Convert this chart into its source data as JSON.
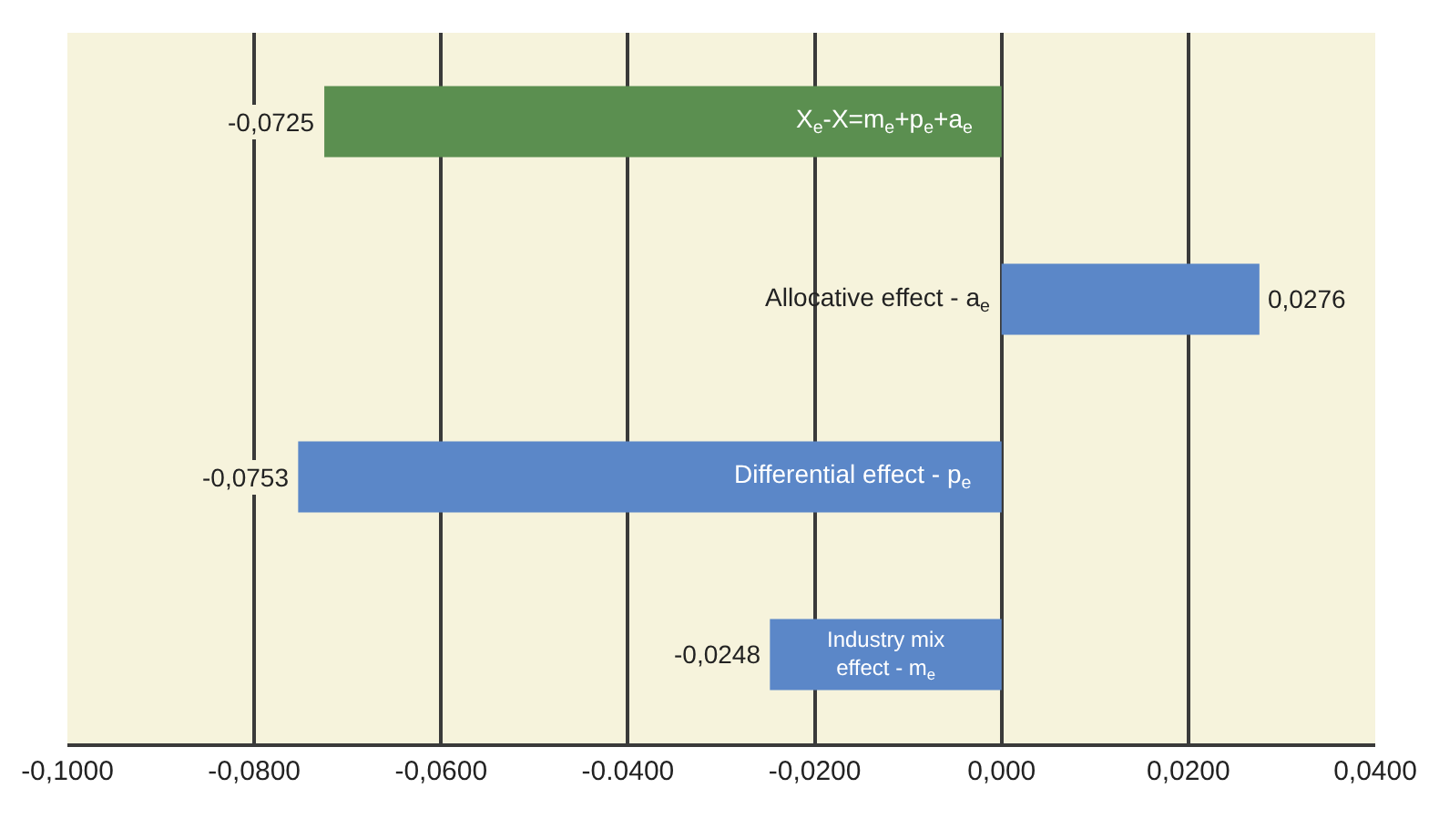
{
  "chart_data": {
    "type": "bar",
    "orientation": "horizontal",
    "categories": [
      "X$_{e}$-X=m$_{e}$+p$_{e}$+a$_{e}$",
      "Allocative effect - a$_{e}$",
      "Differential effect - p$_{e}$",
      "Industry mix effect - m$_{e}$"
    ],
    "values": [
      -0.0725,
      0.0276,
      -0.0753,
      -0.0248
    ],
    "colors": [
      "#5b8f50",
      "#5b87c8",
      "#5b87c8",
      "#5b87c8"
    ],
    "value_labels": [
      "-0,0725",
      "0,0276",
      "-0,0753",
      "-0,0248"
    ],
    "xlim": [
      -0.1,
      0.04
    ],
    "xticks": [
      {
        "value": -0.1,
        "label": "-0,1000"
      },
      {
        "value": -0.08,
        "label": "-0,0800"
      },
      {
        "value": -0.06,
        "label": "-0,0600"
      },
      {
        "value": -0.04,
        "label": "-0.0400"
      },
      {
        "value": -0.02,
        "label": "-0,0200"
      },
      {
        "value": 0,
        "label": "0,000"
      },
      {
        "value": 0.02,
        "label": "0,0200"
      },
      {
        "value": 0.04,
        "label": "0,0400"
      }
    ],
    "grid": "x",
    "tick_labels": "x",
    "legend": false
  }
}
